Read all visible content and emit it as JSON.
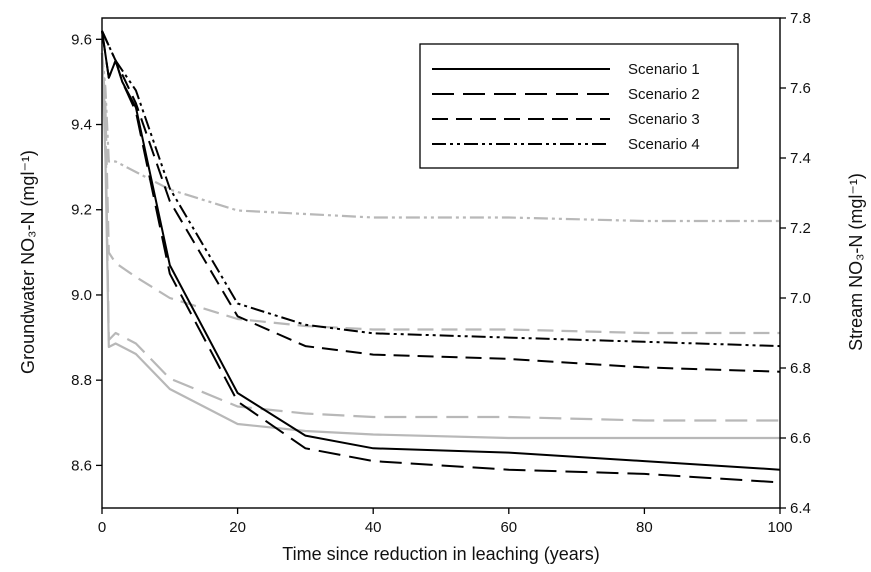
{
  "chart_data": {
    "type": "line",
    "xlabel": "Time since reduction in leaching (years)",
    "ylabel_left": "Groundwater NO₃-N (mgl⁻¹)",
    "ylabel_right": "Stream NO₃-N (mgl⁻¹)",
    "xlim": [
      0,
      100
    ],
    "ylim_left": [
      8.5,
      9.65
    ],
    "ylim_right": [
      6.4,
      7.8
    ],
    "xticks": [
      "0",
      "20",
      "40",
      "60",
      "80",
      "100"
    ],
    "yticks_left": [
      "8.6",
      "8.8",
      "9.0",
      "9.2",
      "9.4",
      "9.6"
    ],
    "yticks_right": [
      "6.4",
      "6.6",
      "6.8",
      "7.0",
      "7.2",
      "7.4",
      "7.6",
      "7.8"
    ],
    "grid": false,
    "legend_position": "top-right",
    "colors": {
      "groundwater": "#000000",
      "stream": "#b8b8b8"
    },
    "series": [
      {
        "name": "Scenario 1",
        "axis": "left",
        "color": "#000000",
        "dash": "solid",
        "x": [
          0,
          1,
          2,
          3,
          5,
          10,
          20,
          30,
          40,
          60,
          80,
          100
        ],
        "y": [
          9.62,
          9.51,
          9.55,
          9.5,
          9.44,
          9.07,
          8.77,
          8.67,
          8.64,
          8.63,
          8.61,
          8.59
        ]
      },
      {
        "name": "Scenario 2",
        "axis": "left",
        "color": "#000000",
        "dash": "long",
        "x": [
          0,
          1,
          2,
          3,
          5,
          10,
          20,
          30,
          40,
          60,
          80,
          100
        ],
        "y": [
          9.62,
          9.51,
          9.55,
          9.5,
          9.43,
          9.05,
          8.75,
          8.64,
          8.61,
          8.59,
          8.58,
          8.56
        ]
      },
      {
        "name": "Scenario 3",
        "axis": "left",
        "color": "#000000",
        "dash": "medium",
        "x": [
          0,
          2,
          5,
          10,
          20,
          30,
          40,
          60,
          80,
          100
        ],
        "y": [
          9.62,
          9.55,
          9.45,
          9.22,
          8.95,
          8.88,
          8.86,
          8.85,
          8.83,
          8.82
        ]
      },
      {
        "name": "",
        "axis": "left",
        "color": "#000000",
        "dash": "dashdotdot",
        "x": [
          0,
          2,
          5,
          10,
          20,
          30,
          40,
          60,
          80,
          100
        ],
        "y": [
          9.62,
          9.55,
          9.48,
          9.25,
          8.98,
          8.93,
          8.91,
          8.9,
          8.89,
          8.88
        ]
      },
      {
        "name": "",
        "axis": "right",
        "color": "#b8b8b8",
        "dash": "solid",
        "x": [
          0,
          0.5,
          1,
          2,
          5,
          10,
          20,
          30,
          40,
          60,
          80,
          100
        ],
        "y": [
          7.7,
          7.4,
          6.86,
          6.87,
          6.84,
          6.74,
          6.64,
          6.62,
          6.61,
          6.6,
          6.6,
          6.6
        ]
      },
      {
        "name": "",
        "axis": "right",
        "color": "#b8b8b8",
        "dash": "long",
        "x": [
          0,
          0.5,
          1,
          2,
          5,
          10,
          20,
          30,
          40,
          60,
          80,
          100
        ],
        "y": [
          7.7,
          7.5,
          6.88,
          6.9,
          6.87,
          6.77,
          6.69,
          6.67,
          6.66,
          6.66,
          6.65,
          6.65
        ]
      },
      {
        "name": "",
        "axis": "right",
        "color": "#b8b8b8",
        "dash": "medium",
        "x": [
          0,
          0.5,
          1,
          2,
          5,
          10,
          20,
          30,
          40,
          60,
          80,
          100
        ],
        "y": [
          7.7,
          7.55,
          7.13,
          7.1,
          7.06,
          7.0,
          6.94,
          6.92,
          6.91,
          6.91,
          6.9,
          6.9
        ]
      },
      {
        "name": "",
        "axis": "right",
        "color": "#b8b8b8",
        "dash": "dashdotdot",
        "x": [
          0,
          0.5,
          1,
          2,
          5,
          10,
          20,
          30,
          40,
          60,
          80,
          100
        ],
        "y": [
          7.7,
          7.6,
          7.39,
          7.39,
          7.36,
          7.31,
          7.25,
          7.24,
          7.23,
          7.23,
          7.22,
          7.22
        ]
      }
    ],
    "legend": [
      {
        "label": "Scenario 1",
        "dash": "solid"
      },
      {
        "label": "Scenario 2",
        "dash": "long"
      },
      {
        "label": "Scenario 3",
        "dash": "medium"
      },
      {
        "label": "Scenario 4",
        "dash": "dashdotdot"
      }
    ]
  }
}
